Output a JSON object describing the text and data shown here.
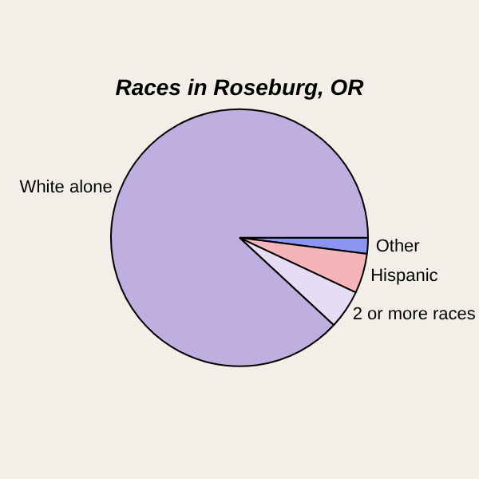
{
  "chart_data": {
    "type": "pie",
    "title": "Races in Roseburg, OR",
    "categories": [
      "Other",
      "Hispanic",
      "2 or more races",
      "White alone"
    ],
    "values": [
      2.0,
      5.0,
      4.9,
      88.1
    ],
    "colors": [
      "#8c96f0",
      "#f4b4b8",
      "#e6dcf4",
      "#bfaee0"
    ],
    "legend": false
  }
}
